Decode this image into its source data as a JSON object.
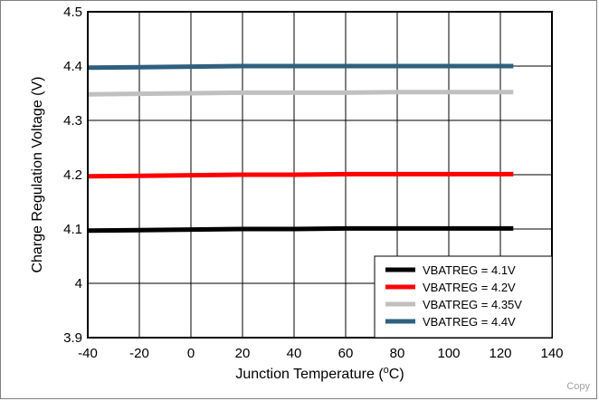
{
  "chart_data": {
    "type": "line",
    "title": "",
    "xlabel": "Junction Temperature (°C)",
    "xlabel_parts": [
      "Junction Temperature (",
      "o",
      "C)"
    ],
    "ylabel": "Charge Regulation Voltage (V)",
    "xlim": [
      -40,
      140
    ],
    "ylim": [
      3.9,
      4.5
    ],
    "xticks": [
      -40,
      -20,
      0,
      20,
      40,
      60,
      80,
      100,
      120,
      140
    ],
    "yticks": [
      3.9,
      4,
      4.1,
      4.2,
      4.3,
      4.4,
      4.5
    ],
    "ytick_labels": [
      "3.9",
      "4",
      "4.1",
      "4.2",
      "4.3",
      "4.4",
      "4.5"
    ],
    "grid": true,
    "legend_position": "bottom-right",
    "series": [
      {
        "name": "VBATREG = 4.1V",
        "color": "#000000",
        "x": [
          -40,
          -20,
          0,
          20,
          40,
          60,
          80,
          100,
          125
        ],
        "y": [
          4.097,
          4.098,
          4.099,
          4.1,
          4.1,
          4.101,
          4.101,
          4.101,
          4.101
        ]
      },
      {
        "name": "VBATREG = 4.2V",
        "color": "#ff0000",
        "x": [
          -40,
          -20,
          0,
          20,
          40,
          60,
          80,
          100,
          125
        ],
        "y": [
          4.197,
          4.198,
          4.199,
          4.2,
          4.2,
          4.201,
          4.201,
          4.201,
          4.201
        ]
      },
      {
        "name": "VBATREG = 4.35V",
        "color": "#c0c0c0",
        "x": [
          -40,
          -20,
          0,
          20,
          40,
          60,
          80,
          100,
          125
        ],
        "y": [
          4.348,
          4.349,
          4.35,
          4.351,
          4.351,
          4.351,
          4.352,
          4.352,
          4.352
        ]
      },
      {
        "name": "VBATREG = 4.4V",
        "color": "#30607f",
        "x": [
          -40,
          -20,
          0,
          20,
          40,
          60,
          80,
          100,
          125
        ],
        "y": [
          4.397,
          4.398,
          4.399,
          4.4,
          4.4,
          4.4,
          4.4,
          4.4,
          4.4
        ]
      }
    ]
  },
  "footer": {
    "copyright": "Copy"
  }
}
